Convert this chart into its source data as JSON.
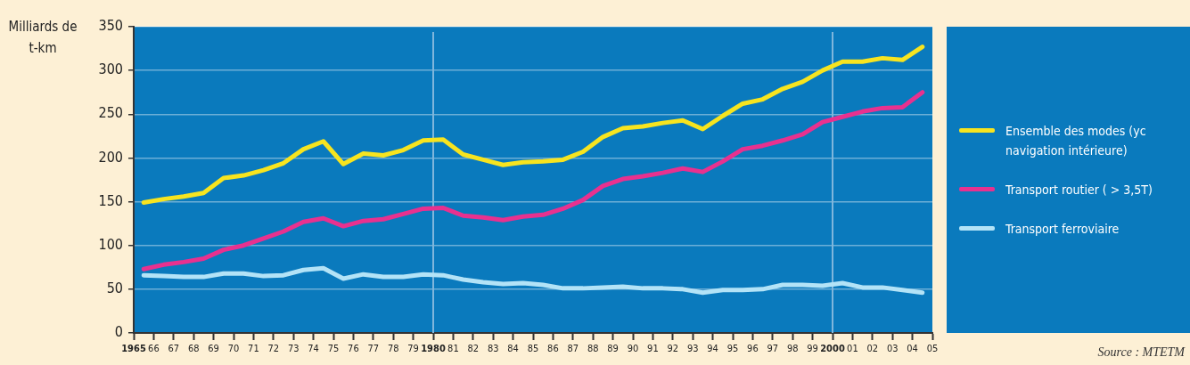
{
  "chart_data": {
    "type": "line",
    "ylabel": "Milliards de t-km",
    "x": [
      1965.5,
      1966.5,
      1967.5,
      1968.5,
      1969.5,
      1970.5,
      1971.5,
      1972.5,
      1973.5,
      1974.5,
      1975.5,
      1976.5,
      1977.5,
      1978.5,
      1979.5,
      1980.5,
      1981.5,
      1982.5,
      1983.5,
      1984.5,
      1985.5,
      1986.5,
      1987.5,
      1988.5,
      1989.5,
      1990.5,
      1991.5,
      1992.5,
      1993.5,
      1994.5,
      1995.5,
      1996.5,
      1997.5,
      1998.5,
      1999.5,
      2000.5,
      2001.5,
      2002.5,
      2003.5,
      2004.5
    ],
    "series": [
      {
        "name": "Ensemble des modes (yc navigation intérieure)",
        "color": "#f7e41f",
        "values": [
          149,
          153,
          156,
          160,
          177,
          180,
          186,
          194,
          210,
          219,
          193,
          205,
          203,
          209,
          220,
          221,
          204,
          198,
          192,
          195,
          196,
          198,
          207,
          224,
          234,
          236,
          240,
          243,
          233,
          248,
          262,
          267,
          279,
          287,
          300,
          310,
          310,
          314,
          312,
          327
        ]
      },
      {
        "name": "Transport routier ( > 3,5T)",
        "color": "#e8318f",
        "values": [
          73,
          78,
          81,
          85,
          95,
          100,
          108,
          116,
          127,
          131,
          122,
          128,
          130,
          136,
          142,
          143,
          134,
          132,
          129,
          133,
          135,
          142,
          152,
          168,
          176,
          179,
          183,
          188,
          184,
          196,
          210,
          214,
          220,
          227,
          241,
          247,
          253,
          257,
          258,
          275
        ]
      },
      {
        "name": "Transport ferroviaire",
        "color": "#b3e3f7",
        "values": [
          66,
          65,
          64,
          64,
          68,
          68,
          65,
          66,
          72,
          74,
          62,
          67,
          64,
          64,
          67,
          66,
          61,
          58,
          56,
          57,
          55,
          51,
          51,
          52,
          53,
          51,
          51,
          50,
          46,
          49,
          49,
          50,
          55,
          55,
          54,
          57,
          52,
          52,
          49,
          46
        ]
      }
    ],
    "xlim": [
      1965,
      2005
    ],
    "xticks": [
      {
        "value": 1965,
        "label": "1965"
      },
      {
        "value": 1966,
        "label": "66"
      },
      {
        "value": 1967,
        "label": "67"
      },
      {
        "value": 1968,
        "label": "68"
      },
      {
        "value": 1969,
        "label": "69"
      },
      {
        "value": 1970,
        "label": "70"
      },
      {
        "value": 1971,
        "label": "71"
      },
      {
        "value": 1972,
        "label": "72"
      },
      {
        "value": 1973,
        "label": "73"
      },
      {
        "value": 1974,
        "label": "74"
      },
      {
        "value": 1975,
        "label": "75"
      },
      {
        "value": 1976,
        "label": "76"
      },
      {
        "value": 1977,
        "label": "77"
      },
      {
        "value": 1978,
        "label": "78"
      },
      {
        "value": 1979,
        "label": "79"
      },
      {
        "value": 1980,
        "label": "1980"
      },
      {
        "value": 1981,
        "label": "81"
      },
      {
        "value": 1982,
        "label": "82"
      },
      {
        "value": 1983,
        "label": "83"
      },
      {
        "value": 1984,
        "label": "84"
      },
      {
        "value": 1985,
        "label": "85"
      },
      {
        "value": 1986,
        "label": "86"
      },
      {
        "value": 1987,
        "label": "87"
      },
      {
        "value": 1988,
        "label": "88"
      },
      {
        "value": 1989,
        "label": "89"
      },
      {
        "value": 1990,
        "label": "90"
      },
      {
        "value": 1991,
        "label": "91"
      },
      {
        "value": 1992,
        "label": "92"
      },
      {
        "value": 1993,
        "label": "93"
      },
      {
        "value": 1994,
        "label": "94"
      },
      {
        "value": 1995,
        "label": "95"
      },
      {
        "value": 1996,
        "label": "96"
      },
      {
        "value": 1997,
        "label": "97"
      },
      {
        "value": 1998,
        "label": "98"
      },
      {
        "value": 1999,
        "label": "99"
      },
      {
        "value": 2000,
        "label": "2000"
      },
      {
        "value": 2001,
        "label": "01"
      },
      {
        "value": 2002,
        "label": "02"
      },
      {
        "value": 2003,
        "label": "03"
      },
      {
        "value": 2004,
        "label": "04"
      },
      {
        "value": 2005,
        "label": "05"
      }
    ],
    "ylim": [
      0,
      350
    ],
    "yticks": [
      0,
      50,
      100,
      150,
      200,
      250,
      300,
      350
    ],
    "grid": "y",
    "legend": "right",
    "marker": "none",
    "line_style": "solid",
    "ref_lines": [
      {
        "axis": "x",
        "value": 1980,
        "color": "#7fb6dc"
      },
      {
        "axis": "x",
        "value": 2000,
        "color": "#7fb6dc"
      }
    ],
    "annotations": [
      "Source : MTETM"
    ]
  }
}
